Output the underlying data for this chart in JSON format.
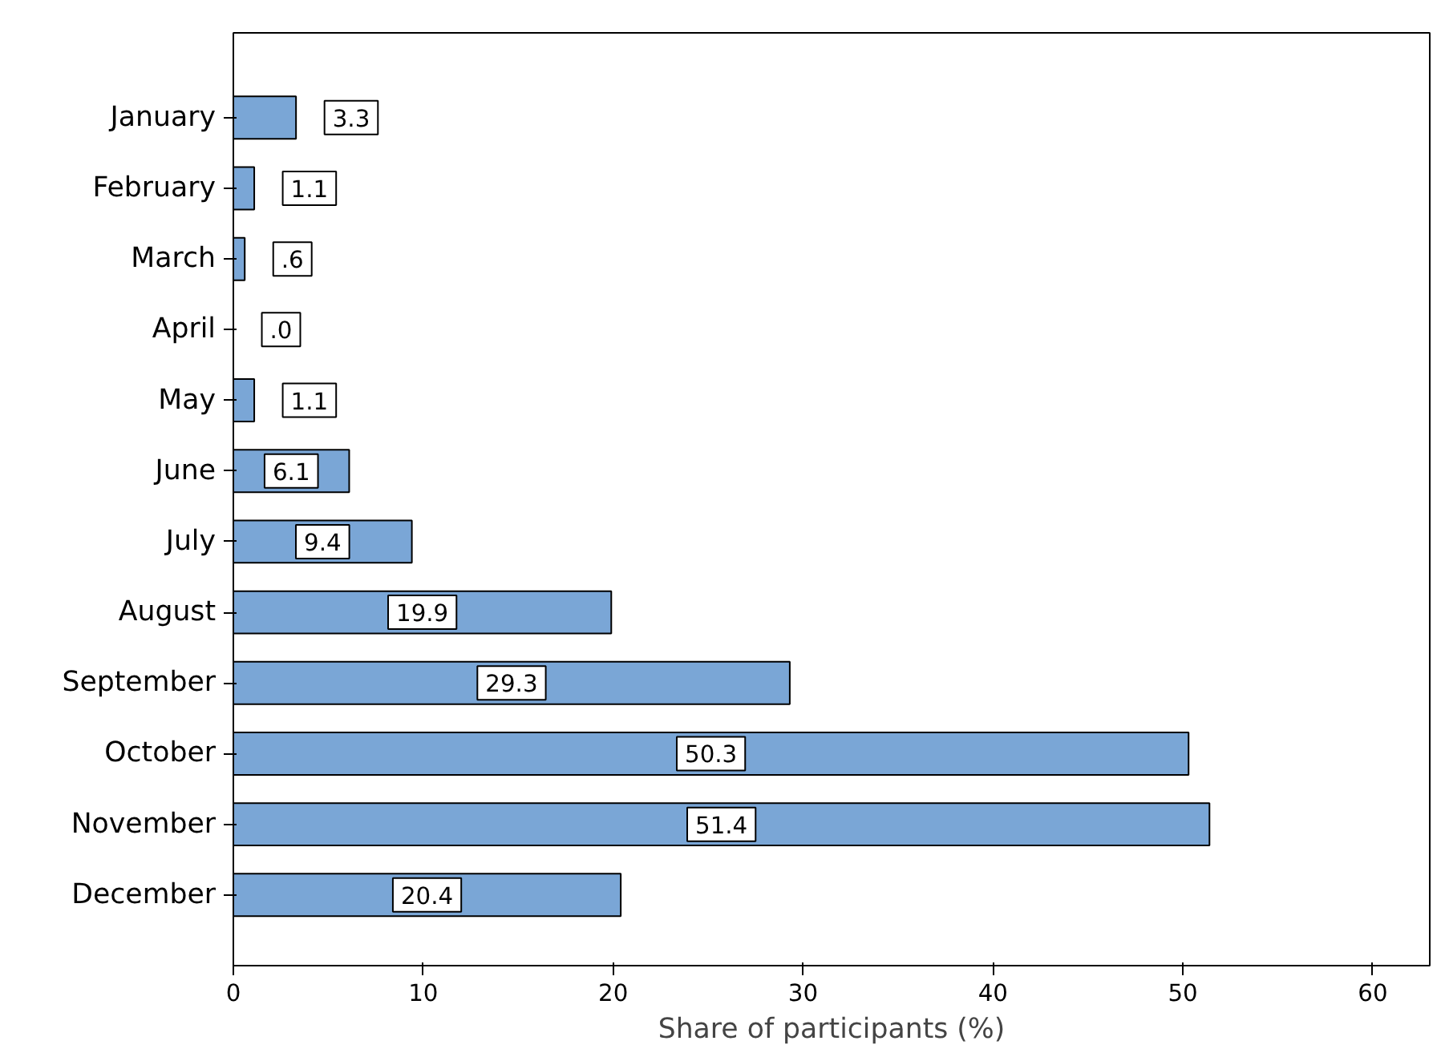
{
  "chart_data": {
    "type": "bar",
    "orientation": "horizontal",
    "xlabel": "Share of participants (%)",
    "categories": [
      "January",
      "February",
      "March",
      "April",
      "May",
      "June",
      "July",
      "August",
      "September",
      "October",
      "November",
      "December"
    ],
    "values": [
      3.3,
      1.1,
      0.6,
      0.0,
      1.1,
      6.1,
      9.4,
      19.9,
      29.3,
      50.3,
      51.4,
      20.4
    ],
    "value_labels": [
      "3.3",
      "1.1",
      ".6",
      ".0",
      "1.1",
      "6.1",
      "9.4",
      "19.9",
      "29.3",
      "50.3",
      "51.4",
      "20.4"
    ],
    "color": "#7aa6d6",
    "xlim": [
      0,
      63
    ],
    "xticks": [
      0,
      10,
      20,
      30,
      40,
      50,
      60
    ],
    "grid": false
  }
}
